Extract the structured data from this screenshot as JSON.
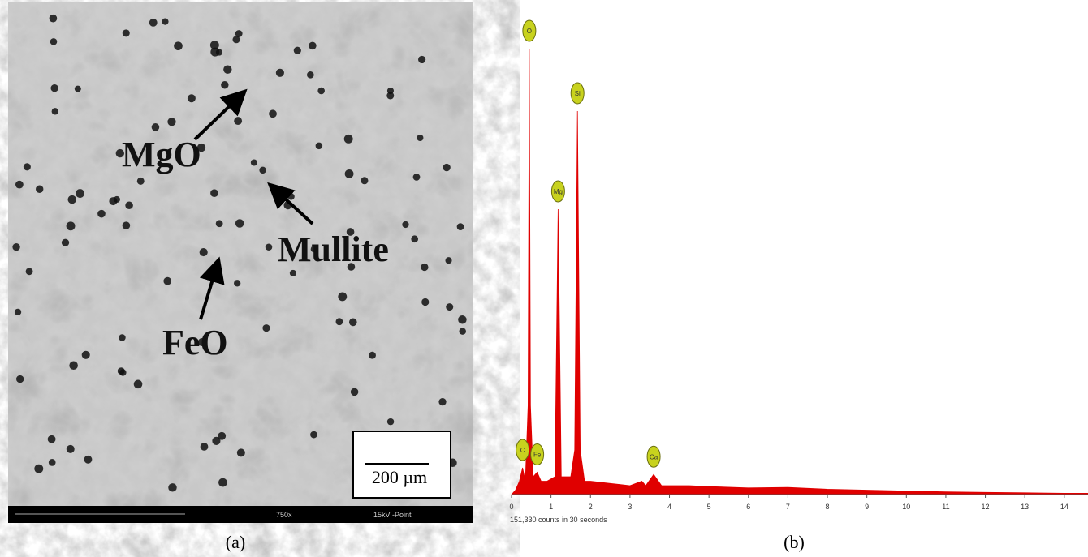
{
  "panel_a": {
    "labels": [
      "MgO",
      "Mullite",
      "FeO"
    ],
    "scale_bar": "200 µm",
    "footer": [
      "750x",
      "15kV -Point"
    ],
    "caption": "(a)"
  },
  "chart_data": {
    "type": "area",
    "caption": "(b)",
    "footer": "151,330 counts in 30 seconds",
    "color": "#e00000",
    "x": [
      0,
      0.1,
      0.2,
      0.28,
      0.35,
      0.42,
      0.45,
      0.48,
      0.55,
      0.65,
      0.75,
      0.9,
      1.1,
      1.18,
      1.26,
      1.5,
      1.6,
      1.67,
      1.74,
      1.85,
      2,
      2.5,
      3,
      3.3,
      3.4,
      3.6,
      3.8,
      4.5,
      5,
      6,
      7,
      8,
      9,
      10,
      11,
      12,
      13,
      14,
      14.6
    ],
    "values": [
      0,
      1,
      3,
      6,
      3,
      20,
      100,
      20,
      4,
      5,
      3,
      3,
      4,
      64,
      4,
      4,
      10,
      86,
      10,
      3,
      3,
      2.5,
      2,
      3,
      2,
      4.5,
      2,
      2,
      1.8,
      1.5,
      1.6,
      1.2,
      1,
      0.8,
      0.6,
      0.5,
      0.4,
      0.3,
      0.3
    ],
    "xlim": [
      0,
      14.6
    ],
    "ylim": [
      0,
      100
    ],
    "xticks": [
      0,
      1,
      2,
      3,
      4,
      5,
      6,
      7,
      8,
      9,
      10,
      11,
      12,
      13,
      14
    ],
    "annotations": [
      {
        "text": "O",
        "x": 0.45
      },
      {
        "text": "Si",
        "x": 1.67
      },
      {
        "text": "Mg",
        "x": 1.18
      },
      {
        "text": "C",
        "x": 0.28
      },
      {
        "text": "Fe",
        "x": 0.65
      },
      {
        "text": "Ca",
        "x": 3.6
      }
    ]
  }
}
